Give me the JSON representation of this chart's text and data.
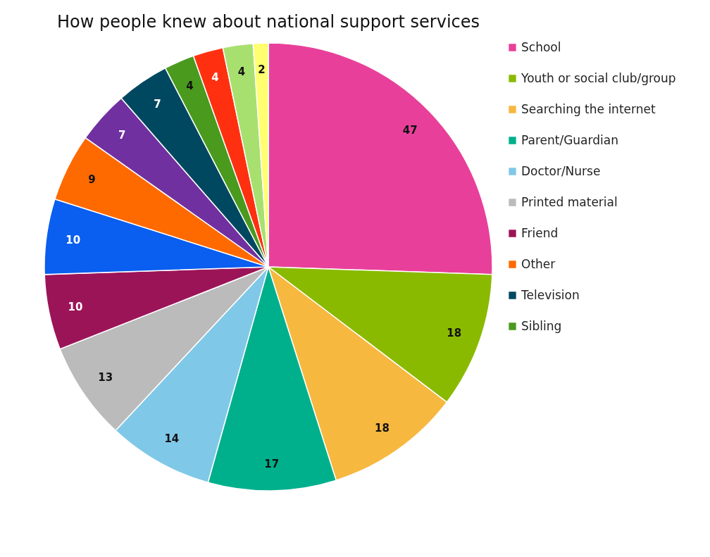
{
  "chart_data": {
    "type": "pie",
    "title": "How people knew about national support services",
    "categories": [
      "School",
      "Youth or social club/group",
      "Searching the internet",
      "Parent/Guardian",
      "Doctor/Nurse",
      "Printed material",
      "Friend",
      null,
      "Other",
      null,
      "Television",
      "Sibling",
      null,
      null,
      null
    ],
    "values": [
      47,
      18,
      18,
      17,
      14,
      13,
      10,
      10,
      9,
      7,
      7,
      4,
      4,
      4,
      2
    ],
    "colors": [
      "#e8409a",
      "#8aba00",
      "#f7b840",
      "#00b08c",
      "#80c8e8",
      "#bbbbbb",
      "#9c1458",
      "#0a5ef0",
      "#ff6a00",
      "#7030a0",
      "#004860",
      "#4a9a1e",
      "#ff3010",
      "#a8e070",
      "#ffff70"
    ],
    "data_labels": true,
    "legend": "right"
  }
}
